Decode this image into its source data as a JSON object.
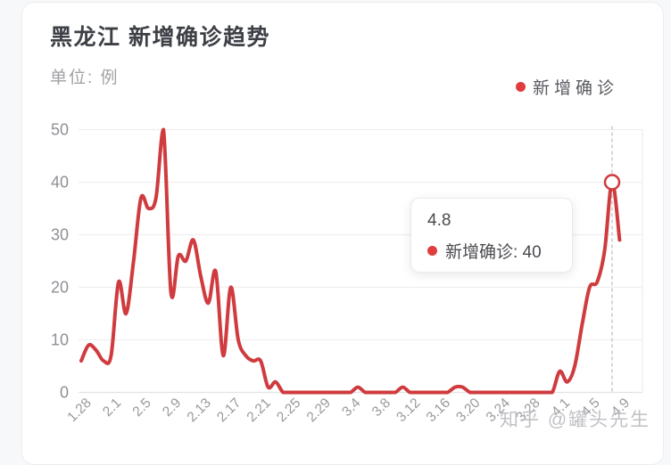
{
  "header": {
    "title": "黑龙江 新增确诊趋势",
    "unit_label": "单位: 例"
  },
  "legend": {
    "items": [
      {
        "label": "新增确诊",
        "color": "#e03c3c"
      }
    ]
  },
  "tooltip": {
    "title": "4.8",
    "series_label": "新增确诊",
    "value": "40",
    "line2": "新增确诊: 40"
  },
  "watermark": {
    "text": "知乎 @罐头先生"
  },
  "chart_data": {
    "type": "line",
    "title": "黑龙江 新增确诊趋势",
    "unit": "例",
    "series_name": "新增确诊",
    "line_color": "#cf3b3e",
    "dot_color": "#e03c3c",
    "smooth": true,
    "grid": "horizontal",
    "ylim": [
      0,
      50
    ],
    "y_ticks": [
      0,
      10,
      20,
      30,
      40,
      50
    ],
    "x_tick_every": 4,
    "x_tick_labels": [
      "1.28",
      "2.1",
      "2.5",
      "2.9",
      "2.13",
      "2.17",
      "2.21",
      "2.25",
      "2.29",
      "3.4",
      "3.8",
      "3.12",
      "3.16",
      "3.20",
      "3.24",
      "3.28",
      "4.1",
      "4.5",
      "4.9"
    ],
    "x": [
      "1.28",
      "1.29",
      "1.30",
      "1.31",
      "2.1",
      "2.2",
      "2.3",
      "2.4",
      "2.5",
      "2.6",
      "2.7",
      "2.8",
      "2.9",
      "2.10",
      "2.11",
      "2.12",
      "2.13",
      "2.14",
      "2.15",
      "2.16",
      "2.17",
      "2.18",
      "2.19",
      "2.20",
      "2.21",
      "2.22",
      "2.23",
      "2.24",
      "2.25",
      "2.26",
      "2.27",
      "2.28",
      "2.29",
      "3.1",
      "3.2",
      "3.3",
      "3.4",
      "3.5",
      "3.6",
      "3.7",
      "3.8",
      "3.9",
      "3.10",
      "3.11",
      "3.12",
      "3.13",
      "3.14",
      "3.15",
      "3.16",
      "3.17",
      "3.18",
      "3.19",
      "3.20",
      "3.21",
      "3.22",
      "3.23",
      "3.24",
      "3.25",
      "3.26",
      "3.27",
      "3.28",
      "3.29",
      "3.30",
      "3.31",
      "4.1",
      "4.2",
      "4.3",
      "4.4",
      "4.5",
      "4.6",
      "4.7",
      "4.8",
      "4.9"
    ],
    "values": [
      6,
      9,
      8,
      6,
      7,
      21,
      15,
      25,
      37,
      35,
      37,
      50,
      19,
      26,
      25,
      29,
      22,
      17,
      23,
      7,
      20,
      10,
      7,
      6,
      6,
      1,
      2,
      0,
      0,
      0,
      0,
      0,
      0,
      0,
      0,
      0,
      0,
      1,
      0,
      0,
      0,
      0,
      0,
      1,
      0,
      0,
      0,
      0,
      0,
      0,
      1,
      1,
      0,
      0,
      0,
      0,
      0,
      0,
      0,
      0,
      0,
      0,
      0,
      0,
      4,
      2,
      5,
      13,
      20,
      21,
      27,
      40,
      29
    ],
    "highlight": {
      "index": 71,
      "x_label": "4.8",
      "value": 40
    }
  }
}
